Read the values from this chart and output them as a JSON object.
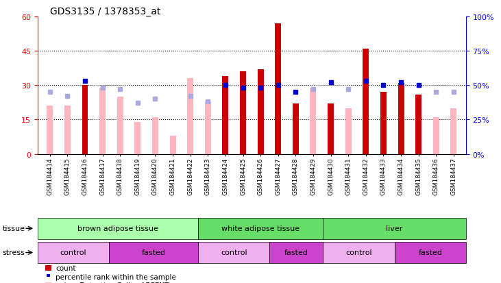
{
  "title": "GDS3135 / 1378353_at",
  "samples": [
    "GSM184414",
    "GSM184415",
    "GSM184416",
    "GSM184417",
    "GSM184418",
    "GSM184419",
    "GSM184420",
    "GSM184421",
    "GSM184422",
    "GSM184423",
    "GSM184424",
    "GSM184425",
    "GSM184426",
    "GSM184427",
    "GSM184428",
    "GSM184429",
    "GSM184430",
    "GSM184431",
    "GSM184432",
    "GSM184433",
    "GSM184434",
    "GSM184435",
    "GSM184436",
    "GSM184437"
  ],
  "count": [
    null,
    null,
    30,
    null,
    null,
    null,
    null,
    null,
    null,
    null,
    34,
    36,
    37,
    57,
    22,
    null,
    22,
    null,
    46,
    27,
    31,
    26,
    null,
    null
  ],
  "count_absent": [
    21,
    21,
    null,
    29,
    25,
    14,
    16,
    8,
    33,
    23,
    null,
    null,
    null,
    null,
    null,
    29,
    null,
    20,
    null,
    null,
    null,
    null,
    16,
    20
  ],
  "rank_pct": [
    null,
    null,
    53,
    null,
    null,
    null,
    null,
    null,
    null,
    null,
    50,
    48,
    48,
    50,
    45,
    null,
    52,
    null,
    53,
    50,
    52,
    50,
    null,
    null
  ],
  "rank_absent_pct": [
    45,
    42,
    null,
    48,
    47,
    37,
    40,
    null,
    42,
    38,
    null,
    null,
    null,
    null,
    null,
    47,
    null,
    47,
    null,
    null,
    null,
    null,
    45,
    45
  ],
  "ylim_left": [
    0,
    60
  ],
  "ylim_right": [
    0,
    100
  ],
  "yticks_left": [
    0,
    15,
    30,
    45,
    60
  ],
  "yticks_right": [
    0,
    25,
    50,
    75,
    100
  ],
  "bar_color_count": "#cc0000",
  "bar_color_absent": "#FFB6C1",
  "rank_color": "#0000cc",
  "rank_absent_color": "#aaaadd",
  "tissue_defs": [
    {
      "label": "brown adipose tissue",
      "start": 0,
      "end": 9,
      "color": "#aaffaa"
    },
    {
      "label": "white adipose tissue",
      "start": 9,
      "end": 16,
      "color": "#66dd66"
    },
    {
      "label": "liver",
      "start": 16,
      "end": 24,
      "color": "#66dd66"
    }
  ],
  "stress_defs": [
    {
      "label": "control",
      "start": 0,
      "end": 4,
      "color": "#f0b0f0"
    },
    {
      "label": "fasted",
      "start": 4,
      "end": 9,
      "color": "#cc44cc"
    },
    {
      "label": "control",
      "start": 9,
      "end": 13,
      "color": "#f0b0f0"
    },
    {
      "label": "fasted",
      "start": 13,
      "end": 16,
      "color": "#cc44cc"
    },
    {
      "label": "control",
      "start": 16,
      "end": 20,
      "color": "#f0b0f0"
    },
    {
      "label": "fasted",
      "start": 20,
      "end": 24,
      "color": "#cc44cc"
    }
  ],
  "bar_width": 0.35
}
